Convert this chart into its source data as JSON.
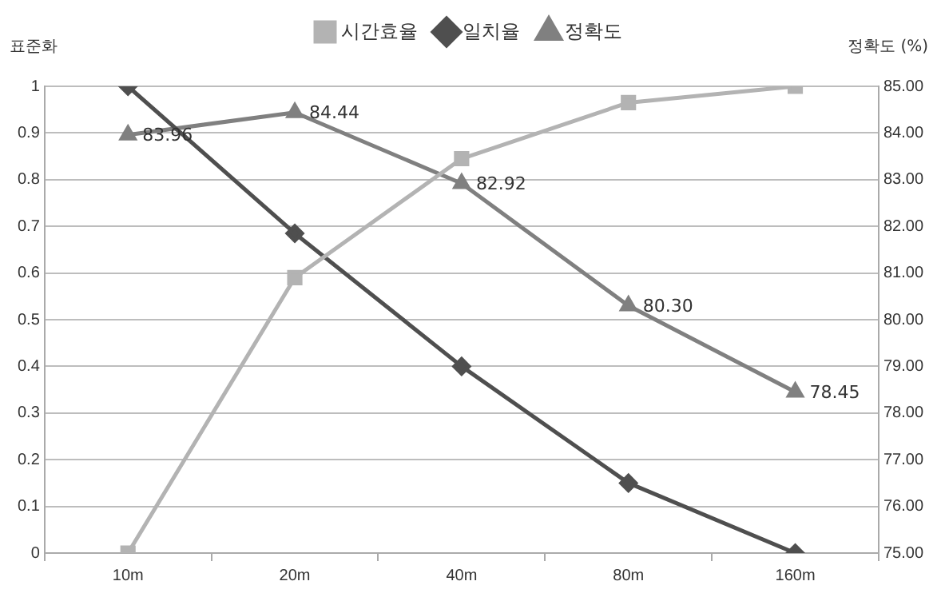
{
  "chart_data": {
    "type": "line",
    "categories": [
      "10m",
      "20m",
      "40m",
      "80m",
      "160m"
    ],
    "ylabel": "표준화",
    "y2label": "정확도 (%)",
    "ylim": [
      0,
      1
    ],
    "yticks": [
      0,
      0.1,
      0.2,
      0.3,
      0.4,
      0.5,
      0.6,
      0.7,
      0.8,
      0.9,
      1
    ],
    "y2lim": [
      75,
      85
    ],
    "y2ticks": [
      {
        "value": 75,
        "label": "75.00"
      },
      {
        "value": 76,
        "label": "76.00"
      },
      {
        "value": 77,
        "label": "77.00"
      },
      {
        "value": 78,
        "label": "78.00"
      },
      {
        "value": 79,
        "label": "79.00"
      },
      {
        "value": 80,
        "label": "80.00"
      },
      {
        "value": 81,
        "label": "81.00"
      },
      {
        "value": 82,
        "label": "82.00"
      },
      {
        "value": 83,
        "label": "83.00"
      },
      {
        "value": 84,
        "label": "84.00"
      },
      {
        "value": 85,
        "label": "85.00"
      }
    ],
    "grid": "y",
    "legend": "top",
    "series": [
      {
        "name": "시간효율",
        "color": "#b3b3b3",
        "marker": "square",
        "values": [
          0,
          0.59,
          0.845,
          0.965,
          1
        ]
      },
      {
        "name": "일치율",
        "color": "#4f4f4f",
        "marker": "diamond",
        "values": [
          1,
          0.685,
          0.4,
          0.15,
          0
        ]
      },
      {
        "name": "정확도",
        "color": "#808080",
        "marker": "triangle",
        "axis": "y2",
        "values": [
          83.96,
          84.44,
          82.92,
          80.3,
          78.45
        ],
        "value_labels": [
          "83.96",
          "84.44",
          "82.92",
          "80.30",
          "78.45"
        ]
      }
    ]
  }
}
